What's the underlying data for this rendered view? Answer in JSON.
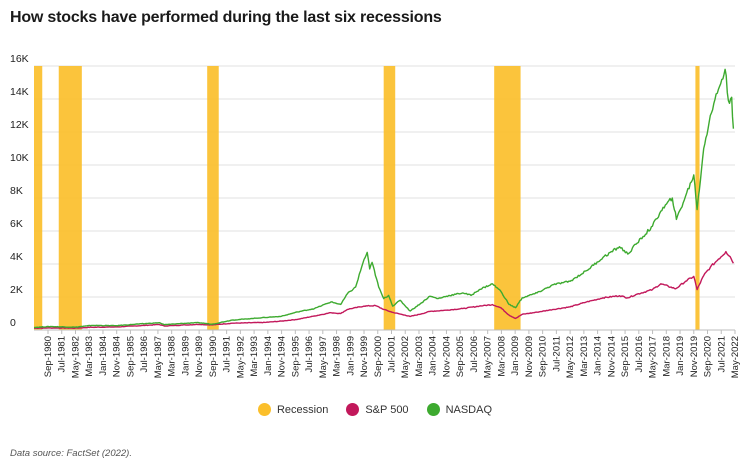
{
  "title": "How stocks have performed during the last six recessions",
  "source": "Data source: FactSet (2022).",
  "legend": [
    {
      "label": "Recession",
      "color": "#FBBF2B"
    },
    {
      "label": "S&P 500",
      "color": "#C2185B"
    },
    {
      "label": "NASDAQ",
      "color": "#3DAA2F"
    }
  ],
  "chart_data": {
    "type": "line",
    "title": "How stocks have performed during the last six recessions",
    "xlabel": "",
    "ylabel": "",
    "x_range": [
      1980.0,
      2022.5
    ],
    "ylim": [
      0,
      16000
    ],
    "yticks": [
      0,
      2000,
      4000,
      6000,
      8000,
      10000,
      12000,
      14000,
      16000
    ],
    "ytick_labels": [
      "0",
      "2K",
      "4K",
      "6K",
      "8K",
      "10K",
      "12K",
      "14K",
      "16K"
    ],
    "grid": "horizontal",
    "legend_position": "bottom",
    "xtick_labels": [
      "Sep-1980",
      "Jul-1981",
      "May-1982",
      "Mar-1983",
      "Jan-1984",
      "Nov-1984",
      "Sep-1985",
      "Jul-1986",
      "May-1987",
      "Mar-1988",
      "Jan-1989",
      "Nov-1989",
      "Sep-1990",
      "Jul-1991",
      "May-1992",
      "Mar-1993",
      "Jan-1994",
      "Nov-1994",
      "Sep-1995",
      "Jul-1996",
      "May-1997",
      "Mar-1998",
      "Jan-1999",
      "Nov-1999",
      "Sep-2000",
      "Jul-2001",
      "May-2002",
      "Mar-2003",
      "Jan-2004",
      "Nov-2004",
      "Sep-2005",
      "Jul-2006",
      "May-2007",
      "Mar-2008",
      "Jan-2009",
      "Nov-2009",
      "Sep-2010",
      "Jul-2011",
      "May-2012",
      "Mar-2013",
      "Jan-2014",
      "Nov-2014",
      "Sep-2015",
      "Jul-2016",
      "May-2017",
      "Mar-2018",
      "Jan-2019",
      "Nov-2019",
      "Sep-2020",
      "Jul-2021",
      "May-2022"
    ],
    "recessions": [
      {
        "start": 1980.0,
        "end": 1980.5
      },
      {
        "start": 1981.5,
        "end": 1982.9
      },
      {
        "start": 1990.5,
        "end": 1991.2
      },
      {
        "start": 2001.2,
        "end": 2001.9
      },
      {
        "start": 2007.9,
        "end": 2009.5
      },
      {
        "start": 2020.1,
        "end": 2020.35
      }
    ],
    "series": [
      {
        "name": "S&P 500",
        "color": "#C2185B",
        "points": [
          [
            1980.0,
            110
          ],
          [
            1981.0,
            125
          ],
          [
            1982.5,
            115
          ],
          [
            1983.5,
            165
          ],
          [
            1985.0,
            185
          ],
          [
            1986.0,
            240
          ],
          [
            1987.6,
            330
          ],
          [
            1987.9,
            240
          ],
          [
            1989.0,
            300
          ],
          [
            1990.0,
            340
          ],
          [
            1990.8,
            310
          ],
          [
            1992.0,
            410
          ],
          [
            1994.0,
            460
          ],
          [
            1995.0,
            540
          ],
          [
            1996.0,
            650
          ],
          [
            1997.0,
            850
          ],
          [
            1998.0,
            1050
          ],
          [
            1998.6,
            1000
          ],
          [
            1999.0,
            1250
          ],
          [
            2000.0,
            1450
          ],
          [
            2000.7,
            1480
          ],
          [
            2001.2,
            1250
          ],
          [
            2001.7,
            1080
          ],
          [
            2002.5,
            900
          ],
          [
            2002.8,
            820
          ],
          [
            2003.5,
            980
          ],
          [
            2004.0,
            1130
          ],
          [
            2005.0,
            1200
          ],
          [
            2006.0,
            1300
          ],
          [
            2007.0,
            1450
          ],
          [
            2007.8,
            1540
          ],
          [
            2008.3,
            1350
          ],
          [
            2008.8,
            900
          ],
          [
            2009.2,
            700
          ],
          [
            2009.6,
            950
          ],
          [
            2010.5,
            1080
          ],
          [
            2011.5,
            1250
          ],
          [
            2012.5,
            1400
          ],
          [
            2013.5,
            1700
          ],
          [
            2014.5,
            1950
          ],
          [
            2015.5,
            2080
          ],
          [
            2016.0,
            1950
          ],
          [
            2016.5,
            2150
          ],
          [
            2017.5,
            2450
          ],
          [
            2018.0,
            2800
          ],
          [
            2018.9,
            2500
          ],
          [
            2019.5,
            2950
          ],
          [
            2020.0,
            3250
          ],
          [
            2020.2,
            2450
          ],
          [
            2020.6,
            3300
          ],
          [
            2021.0,
            3800
          ],
          [
            2021.5,
            4300
          ],
          [
            2021.95,
            4750
          ],
          [
            2022.2,
            4450
          ],
          [
            2022.4,
            4050
          ]
        ]
      },
      {
        "name": "NASDAQ",
        "color": "#3DAA2F",
        "points": [
          [
            1980.0,
            160
          ],
          [
            1981.0,
            210
          ],
          [
            1982.5,
            170
          ],
          [
            1983.5,
            280
          ],
          [
            1985.0,
            260
          ],
          [
            1986.0,
            340
          ],
          [
            1987.6,
            440
          ],
          [
            1987.9,
            320
          ],
          [
            1989.0,
            400
          ],
          [
            1990.0,
            440
          ],
          [
            1990.8,
            350
          ],
          [
            1992.0,
            600
          ],
          [
            1994.0,
            760
          ],
          [
            1995.0,
            830
          ],
          [
            1996.0,
            1100
          ],
          [
            1997.0,
            1300
          ],
          [
            1998.0,
            1700
          ],
          [
            1998.6,
            1550
          ],
          [
            1999.0,
            2200
          ],
          [
            1999.5,
            2600
          ],
          [
            1999.95,
            4100
          ],
          [
            2000.2,
            4700
          ],
          [
            2000.35,
            3700
          ],
          [
            2000.5,
            4100
          ],
          [
            2000.9,
            2600
          ],
          [
            2001.2,
            1900
          ],
          [
            2001.5,
            2100
          ],
          [
            2001.75,
            1450
          ],
          [
            2002.2,
            1800
          ],
          [
            2002.8,
            1150
          ],
          [
            2003.5,
            1650
          ],
          [
            2004.0,
            2050
          ],
          [
            2004.5,
            1900
          ],
          [
            2005.0,
            2050
          ],
          [
            2006.0,
            2250
          ],
          [
            2006.5,
            2100
          ],
          [
            2007.0,
            2450
          ],
          [
            2007.8,
            2800
          ],
          [
            2008.3,
            2350
          ],
          [
            2008.8,
            1550
          ],
          [
            2009.2,
            1350
          ],
          [
            2009.6,
            1950
          ],
          [
            2010.5,
            2250
          ],
          [
            2011.5,
            2750
          ],
          [
            2012.5,
            2950
          ],
          [
            2013.5,
            3600
          ],
          [
            2014.5,
            4400
          ],
          [
            2015.5,
            5050
          ],
          [
            2016.0,
            4600
          ],
          [
            2016.5,
            5200
          ],
          [
            2017.5,
            6300
          ],
          [
            2018.0,
            7200
          ],
          [
            2018.7,
            8000
          ],
          [
            2018.95,
            6700
          ],
          [
            2019.5,
            8100
          ],
          [
            2020.0,
            9400
          ],
          [
            2020.2,
            7300
          ],
          [
            2020.6,
            11000
          ],
          [
            2021.0,
            13000
          ],
          [
            2021.5,
            14600
          ],
          [
            2021.9,
            15800
          ],
          [
            2022.1,
            13900
          ],
          [
            2022.3,
            14100
          ],
          [
            2022.4,
            12200
          ]
        ]
      }
    ]
  }
}
